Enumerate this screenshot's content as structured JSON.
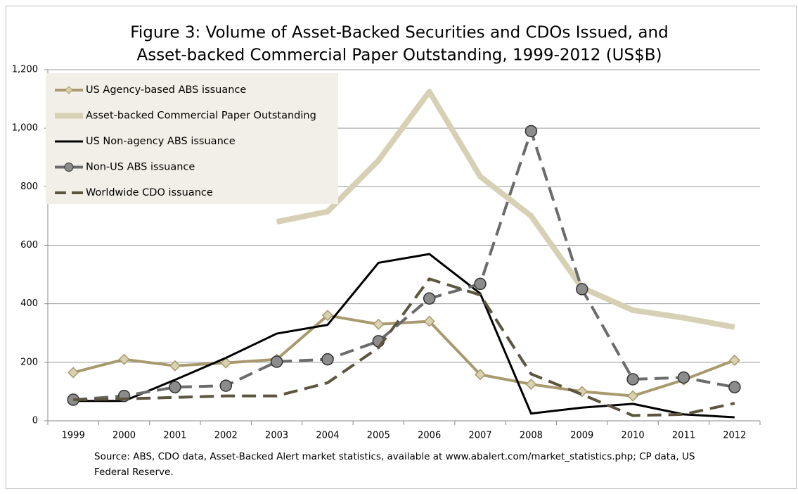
{
  "chart_data": {
    "type": "line",
    "title": [
      "Figure 3: Volume of Asset-Backed Securities and CDOs Issued, and",
      "Asset-backed Commercial Paper Outstanding, 1999-2012 (US$B)"
    ],
    "source": [
      "Source: ABS, CDO data, Asset-Backed Alert market statistics, available at www.abalert.com/market_statistics.php; CP data, US",
      "Federal Reserve."
    ],
    "categories": [
      "1999",
      "2000",
      "2001",
      "2002",
      "2003",
      "2004",
      "2005",
      "2006",
      "2007",
      "2008",
      "2009",
      "2010",
      "2011",
      "2012"
    ],
    "series": [
      {
        "name": "US Agency-based ABS issuance",
        "color": "#a89a6e",
        "line_width": 4,
        "marker": "diamond",
        "marker_color": "#d9d2b0",
        "values": [
          165,
          210,
          188,
          198,
          210,
          360,
          330,
          340,
          158,
          125,
          100,
          85,
          140,
          207
        ]
      },
      {
        "name": "Asset-backed Commercial Paper Outstanding",
        "color": "#d6d0b4",
        "line_width": 8,
        "values": [
          null,
          null,
          null,
          null,
          680,
          715,
          890,
          1125,
          835,
          700,
          455,
          378,
          352,
          320
        ]
      },
      {
        "name": "US Non-agency ABS issuance",
        "color": "#000000",
        "line_width": 3,
        "values": [
          68,
          68,
          140,
          215,
          298,
          328,
          540,
          570,
          435,
          25,
          45,
          58,
          22,
          12
        ]
      },
      {
        "name": "Non-US ABS issuance",
        "color": "#6b6b6b",
        "line_width": 4,
        "dashed": true,
        "marker": "circle",
        "marker_color": "#8c8c8c",
        "values": [
          72,
          85,
          115,
          120,
          202,
          210,
          272,
          418,
          468,
          990,
          450,
          142,
          148,
          115
        ]
      },
      {
        "name": "Worldwide CDO issuance",
        "color": "#5c5540",
        "line_width": 4,
        "dashed": true,
        "values": [
          72,
          75,
          80,
          85,
          85,
          130,
          250,
          485,
          430,
          160,
          90,
          18,
          22,
          60
        ]
      }
    ],
    "ylim": [
      0,
      1200
    ],
    "yticks": [
      0,
      200,
      400,
      600,
      800,
      {
        "value": 1000,
        "label": "1,000"
      },
      {
        "value": 1200,
        "label": "1,200"
      }
    ],
    "grid": true,
    "legend": "upper left"
  }
}
